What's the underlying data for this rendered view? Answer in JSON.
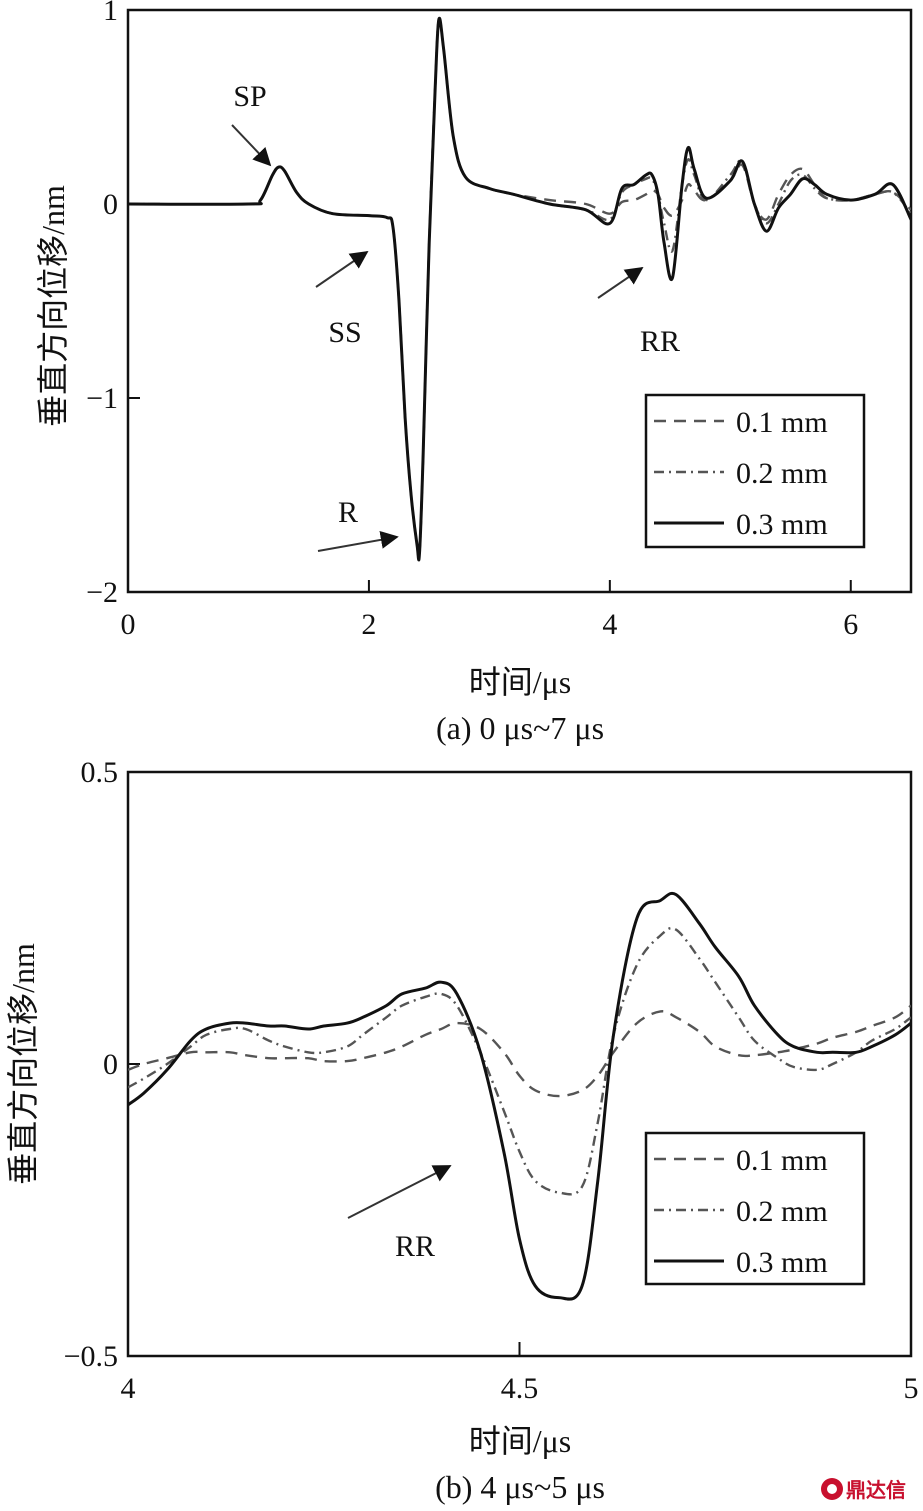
{
  "watermark": "鼎达信",
  "chart_data": [
    {
      "type": "line",
      "caption": "(a) 0 μs~7 μs",
      "xlabel": "时间/μs",
      "ylabel": "垂直方向位移/nm",
      "xlim": [
        0,
        6.5
      ],
      "ylim": [
        -2,
        1
      ],
      "xticks": [
        0,
        2,
        4,
        6
      ],
      "xtick_labels": [
        "0",
        "2",
        "4",
        "6"
      ],
      "yticks": [
        1,
        0,
        -1,
        -2
      ],
      "ytick_labels": [
        "1",
        "0",
        "−1",
        "−2"
      ],
      "legend_position": "bottom-right",
      "annotations": [
        {
          "text": "SP",
          "x": 1.2,
          "y": 0.19
        },
        {
          "text": "SS",
          "x": 2.1,
          "y": -0.12
        },
        {
          "text": "R",
          "x": 2.2,
          "y": -1.76
        },
        {
          "text": "RR",
          "x": 4.2,
          "y": -0.33
        }
      ],
      "series": [
        {
          "name": "0.1 mm",
          "style": "dashed",
          "x": [
            0,
            1.0,
            1.1,
            1.2,
            1.25,
            1.3,
            1.4,
            1.5,
            1.7,
            2.0,
            2.15,
            2.2,
            2.25,
            2.3,
            2.35,
            2.4,
            2.42,
            2.45,
            2.5,
            2.55,
            2.58,
            2.62,
            2.7,
            2.8,
            3.0,
            3.2,
            3.5,
            3.8,
            4.0,
            4.1,
            4.2,
            4.3,
            4.35,
            4.4,
            4.45,
            4.52,
            4.6,
            4.65,
            4.7,
            4.8,
            5.0,
            5.1,
            5.2,
            5.3,
            5.4,
            5.5,
            5.6,
            5.7,
            5.8,
            6.0,
            6.2,
            6.35,
            6.5
          ],
          "y": [
            0,
            0,
            0.02,
            0.15,
            0.19,
            0.17,
            0.06,
            0.0,
            -0.05,
            -0.06,
            -0.07,
            -0.12,
            -0.5,
            -1.1,
            -1.5,
            -1.76,
            -1.8,
            -1.3,
            -0.2,
            0.6,
            0.95,
            0.8,
            0.35,
            0.14,
            0.08,
            0.05,
            0.02,
            0.0,
            -0.05,
            0.01,
            0.02,
            0.05,
            0.07,
            0.05,
            -0.02,
            -0.06,
            0.02,
            0.1,
            0.07,
            0.02,
            0.12,
            0.2,
            0.0,
            -0.08,
            0.05,
            0.15,
            0.18,
            0.1,
            0.03,
            0.02,
            0.05,
            0.06,
            -0.03
          ]
        },
        {
          "name": "0.2 mm",
          "style": "dashdot",
          "x": [
            0,
            1.0,
            1.1,
            1.2,
            1.25,
            1.3,
            1.4,
            1.5,
            1.7,
            2.0,
            2.15,
            2.2,
            2.25,
            2.3,
            2.35,
            2.4,
            2.42,
            2.45,
            2.5,
            2.55,
            2.58,
            2.62,
            2.7,
            2.8,
            3.0,
            3.2,
            3.5,
            3.8,
            4.0,
            4.1,
            4.2,
            4.3,
            4.35,
            4.4,
            4.45,
            4.52,
            4.6,
            4.65,
            4.7,
            4.8,
            5.0,
            5.1,
            5.2,
            5.3,
            5.4,
            5.5,
            5.6,
            5.7,
            5.8,
            6.0,
            6.2,
            6.35,
            6.5
          ],
          "y": [
            0,
            0,
            0.02,
            0.15,
            0.19,
            0.17,
            0.06,
            0.0,
            -0.05,
            -0.06,
            -0.07,
            -0.12,
            -0.5,
            -1.1,
            -1.5,
            -1.76,
            -1.8,
            -1.3,
            -0.2,
            0.6,
            0.95,
            0.8,
            0.35,
            0.14,
            0.08,
            0.05,
            0.0,
            -0.03,
            -0.08,
            0.06,
            0.1,
            0.13,
            0.13,
            0.05,
            -0.1,
            -0.24,
            0.1,
            0.23,
            0.15,
            0.02,
            0.15,
            0.22,
            0.0,
            -0.1,
            0.0,
            0.12,
            0.15,
            0.08,
            0.03,
            0.02,
            0.05,
            0.06,
            -0.05
          ]
        },
        {
          "name": "0.3 mm",
          "style": "solid",
          "x": [
            0,
            1.0,
            1.1,
            1.2,
            1.25,
            1.3,
            1.4,
            1.5,
            1.7,
            2.0,
            2.15,
            2.2,
            2.25,
            2.3,
            2.35,
            2.4,
            2.42,
            2.45,
            2.5,
            2.55,
            2.58,
            2.62,
            2.7,
            2.8,
            3.0,
            3.2,
            3.5,
            3.8,
            4.0,
            4.1,
            4.2,
            4.3,
            4.35,
            4.4,
            4.45,
            4.52,
            4.6,
            4.65,
            4.7,
            4.8,
            5.0,
            5.1,
            5.2,
            5.3,
            5.4,
            5.5,
            5.6,
            5.7,
            5.8,
            6.0,
            6.2,
            6.35,
            6.5
          ],
          "y": [
            0,
            0,
            0.02,
            0.15,
            0.19,
            0.17,
            0.06,
            0.0,
            -0.05,
            -0.06,
            -0.07,
            -0.12,
            -0.5,
            -1.1,
            -1.5,
            -1.76,
            -1.8,
            -1.3,
            -0.2,
            0.6,
            0.95,
            0.8,
            0.35,
            0.14,
            0.08,
            0.05,
            0.0,
            -0.03,
            -0.1,
            0.08,
            0.1,
            0.15,
            0.15,
            0.05,
            -0.2,
            -0.38,
            0.1,
            0.29,
            0.18,
            0.03,
            0.12,
            0.22,
            0.0,
            -0.14,
            -0.02,
            0.05,
            0.13,
            0.1,
            0.05,
            0.02,
            0.05,
            0.1,
            -0.08
          ]
        }
      ]
    },
    {
      "type": "line",
      "caption": "(b) 4 μs~5 μs",
      "xlabel": "时间/μs",
      "ylabel": "垂直方向位移/nm",
      "xlim": [
        4,
        5
      ],
      "ylim": [
        -0.5,
        0.5
      ],
      "xticks": [
        4,
        4.5,
        5
      ],
      "xtick_labels": [
        "4",
        "4.5",
        "5"
      ],
      "yticks": [
        0.5,
        0,
        -0.5
      ],
      "ytick_labels": [
        "0.5",
        "0",
        "−0.5"
      ],
      "legend_position": "bottom-right",
      "annotations": [
        {
          "text": "RR",
          "x": 4.37,
          "y": -0.18
        }
      ],
      "series": [
        {
          "name": "0.1 mm",
          "style": "dashed",
          "x": [
            4.0,
            4.02,
            4.05,
            4.08,
            4.1,
            4.13,
            4.15,
            4.18,
            4.2,
            4.23,
            4.25,
            4.28,
            4.3,
            4.33,
            4.35,
            4.38,
            4.4,
            4.42,
            4.45,
            4.48,
            4.5,
            4.52,
            4.55,
            4.58,
            4.6,
            4.62,
            4.65,
            4.68,
            4.7,
            4.73,
            4.75,
            4.78,
            4.8,
            4.83,
            4.85,
            4.88,
            4.9,
            4.93,
            4.95,
            4.98,
            5.0
          ],
          "y": [
            -0.01,
            0.0,
            0.01,
            0.02,
            0.02,
            0.02,
            0.015,
            0.01,
            0.01,
            0.01,
            0.005,
            0.005,
            0.01,
            0.02,
            0.03,
            0.05,
            0.06,
            0.07,
            0.06,
            0.02,
            -0.02,
            -0.045,
            -0.055,
            -0.045,
            -0.02,
            0.02,
            0.07,
            0.09,
            0.08,
            0.055,
            0.03,
            0.015,
            0.015,
            0.02,
            0.025,
            0.035,
            0.045,
            0.055,
            0.065,
            0.08,
            0.1
          ]
        },
        {
          "name": "0.2 mm",
          "style": "dashdot",
          "x": [
            4.0,
            4.02,
            4.05,
            4.08,
            4.1,
            4.13,
            4.15,
            4.18,
            4.2,
            4.23,
            4.25,
            4.28,
            4.3,
            4.33,
            4.35,
            4.38,
            4.4,
            4.42,
            4.45,
            4.48,
            4.5,
            4.52,
            4.55,
            4.58,
            4.6,
            4.62,
            4.65,
            4.68,
            4.7,
            4.73,
            4.75,
            4.78,
            4.8,
            4.83,
            4.85,
            4.88,
            4.9,
            4.93,
            4.95,
            4.98,
            5.0
          ],
          "y": [
            -0.04,
            -0.025,
            0.0,
            0.03,
            0.05,
            0.06,
            0.06,
            0.04,
            0.03,
            0.02,
            0.02,
            0.03,
            0.05,
            0.08,
            0.1,
            0.115,
            0.12,
            0.1,
            0.02,
            -0.08,
            -0.15,
            -0.2,
            -0.22,
            -0.21,
            -0.1,
            0.05,
            0.17,
            0.22,
            0.23,
            0.18,
            0.14,
            0.08,
            0.04,
            0.01,
            -0.005,
            -0.01,
            0.0,
            0.02,
            0.04,
            0.06,
            0.08
          ]
        },
        {
          "name": "0.3 mm",
          "style": "solid",
          "x": [
            4.0,
            4.02,
            4.05,
            4.08,
            4.1,
            4.13,
            4.15,
            4.18,
            4.2,
            4.23,
            4.25,
            4.28,
            4.3,
            4.33,
            4.35,
            4.38,
            4.4,
            4.42,
            4.45,
            4.48,
            4.5,
            4.52,
            4.55,
            4.58,
            4.6,
            4.62,
            4.65,
            4.68,
            4.7,
            4.73,
            4.75,
            4.78,
            4.8,
            4.83,
            4.85,
            4.88,
            4.9,
            4.93,
            4.95,
            4.98,
            5.0
          ],
          "y": [
            -0.07,
            -0.05,
            -0.01,
            0.04,
            0.06,
            0.07,
            0.07,
            0.065,
            0.065,
            0.06,
            0.065,
            0.07,
            0.08,
            0.1,
            0.12,
            0.13,
            0.14,
            0.12,
            0.02,
            -0.15,
            -0.3,
            -0.38,
            -0.4,
            -0.38,
            -0.2,
            0.05,
            0.25,
            0.28,
            0.29,
            0.24,
            0.2,
            0.15,
            0.1,
            0.05,
            0.03,
            0.02,
            0.02,
            0.02,
            0.03,
            0.05,
            0.07
          ]
        }
      ]
    }
  ]
}
